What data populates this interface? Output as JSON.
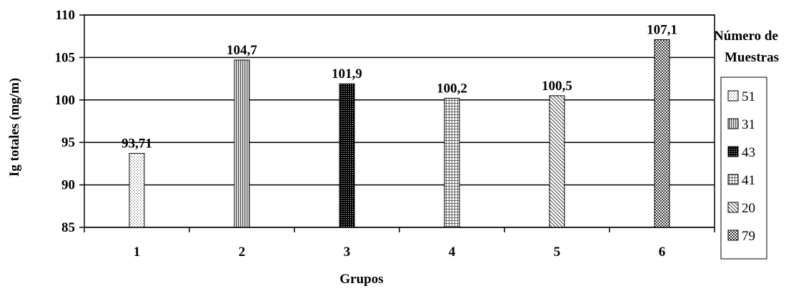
{
  "chart_data": {
    "type": "bar",
    "categories": [
      "1",
      "2",
      "3",
      "4",
      "5",
      "6"
    ],
    "values": [
      93.71,
      104.7,
      101.9,
      100.2,
      100.5,
      107.1
    ],
    "data_labels": [
      "93,71",
      "104,7",
      "101,9",
      "100,2",
      "100,5",
      "107,1"
    ],
    "xlabel": "Grupos",
    "ylabel": "Ig  totales (mg/m)",
    "ylim": [
      85,
      110
    ],
    "yticks": [
      85,
      90,
      95,
      100,
      105,
      110
    ],
    "grid": true,
    "legend": {
      "title_line1": "Número de",
      "title_line2": "Muestras",
      "placement": "right",
      "entries": [
        "51",
        "31",
        "43",
        "41",
        "20",
        "79"
      ]
    },
    "patterns": [
      "dots-light",
      "vertical-lines",
      "dense-dark",
      "grid-squares",
      "diagonal-lines",
      "checker"
    ]
  }
}
